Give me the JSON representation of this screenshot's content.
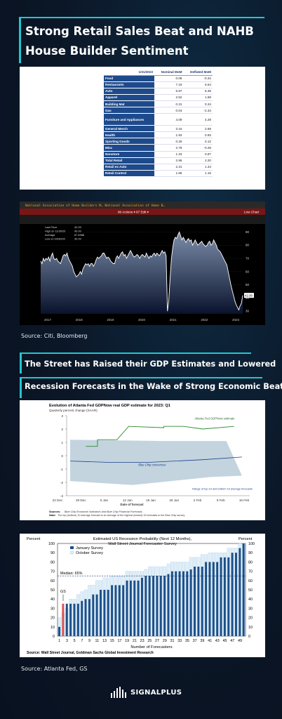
{
  "page": {
    "title": "Strong Retail Sales Beat and NAHB House Builder Sentiment",
    "source1": "Source: Citi, Bloomberg",
    "heading2_line1": "The Street has Raised their GDP Estimates and Lowered",
    "heading2_line2": "Recession Forecasts in the Wake of Strong Economic Beats",
    "source2": "Source: Atlanta Fed, GS",
    "logo": "SIGNALPLUS"
  },
  "colors": {
    "accent": "#23c6d0",
    "table_blue": "#1e4a8c",
    "bg": "#0b1626"
  },
  "chart_data": [
    {
      "type": "table",
      "columns": [
        "1/31/2023",
        "Nominal MoM",
        "Deflated MoM"
      ],
      "rows": [
        [
          "Food",
          "0.08",
          "-0.34"
        ],
        [
          "Restaurants",
          "7.19",
          "6.54"
        ],
        [
          "Auto",
          "5.87",
          "6.36"
        ],
        [
          "Apparel",
          "2.52",
          "1.68"
        ],
        [
          "Building Mat",
          "0.31",
          "0.34"
        ],
        [
          "Gas",
          "0.04",
          "-2.34"
        ],
        [
          "Furniture and Appliances",
          "4.09",
          "4.29"
        ],
        [
          "General Merch",
          "3.16",
          "2.69"
        ],
        [
          "Health",
          "1.93",
          "0.93"
        ],
        [
          "Sporting Goods",
          "0.26",
          "0.12"
        ],
        [
          "Misc",
          "2.79",
          "-0.28"
        ],
        [
          "Nonstore",
          "1.33",
          "0.87"
        ],
        [
          "Total Retail",
          "2.96",
          "2.20"
        ],
        [
          "Retail ex Auto",
          "2.31",
          "1.34"
        ],
        [
          "Retail Control",
          "1.66",
          "1.16"
        ]
      ]
    },
    {
      "type": "area",
      "header1": "National Association of Home Builders M…   National Association of Home B…",
      "header2": "96 Actions ▾   97 Edit ▾",
      "header3": "Line Chart",
      "legend": [
        "Last Price",
        "High on 11/30/20",
        "Average",
        "Low on 04/30/20"
      ],
      "legend_values": [
        "42.00",
        "90.00",
        "67.6986",
        "30.00"
      ],
      "last_label": "42.00",
      "x_ticks": [
        "2017",
        "2018",
        "2019",
        "2020",
        "2021",
        "2022",
        "2023"
      ],
      "y_ticks": [
        "90",
        "80",
        "70",
        "60",
        "50",
        "40",
        "30"
      ],
      "ylim": [
        28,
        95
      ],
      "values": [
        68,
        66,
        70,
        68,
        70,
        69,
        71,
        68,
        72,
        74,
        70,
        69,
        70,
        68,
        67,
        66,
        69,
        72,
        73,
        72,
        74,
        70,
        68,
        66,
        64,
        60,
        58,
        56,
        57,
        58,
        60,
        58,
        62,
        64,
        66,
        65,
        66,
        64,
        66,
        66,
        64,
        66,
        69,
        71,
        70,
        71,
        72,
        74,
        74,
        72,
        70,
        71,
        70,
        68,
        67,
        66,
        66,
        70,
        72,
        70,
        72,
        74,
        75,
        72,
        73,
        70,
        72,
        74,
        76,
        74,
        72,
        71,
        72,
        73,
        72,
        70,
        72,
        73,
        72,
        71,
        74,
        72,
        70,
        72,
        71,
        73,
        74,
        72,
        74,
        73,
        72,
        74,
        76,
        74,
        75,
        72,
        30,
        38,
        55,
        70,
        78,
        84,
        86,
        85,
        88,
        90,
        87,
        84,
        86,
        84,
        82,
        84,
        85,
        83,
        84,
        80,
        82,
        84,
        82,
        80,
        81,
        82,
        83,
        81,
        80,
        79,
        80,
        82,
        83,
        80,
        81,
        84,
        82,
        80,
        77,
        76,
        75,
        73,
        71,
        69,
        67,
        65,
        60,
        55,
        50,
        46,
        42,
        38,
        35,
        33,
        31,
        34,
        36,
        42
      ]
    },
    {
      "type": "line",
      "title": "Evolution of Atlanta Fed GDPNow real GDP estimate for 2023: Q1",
      "subtitle": "Quarterly percent change (SAAR)",
      "xlabel": "Date of forecast",
      "x_ticks": [
        "22 Dec",
        "29 Dec",
        "5 Jan",
        "12 Jan",
        "19 Jan",
        "26 Jan",
        "2 Feb",
        "9 Feb",
        "16 Feb"
      ],
      "y_ticks": [
        "3",
        "2",
        "1",
        "0",
        "-1",
        "-2",
        "-3"
      ],
      "ylim": [
        -3,
        3
      ],
      "annotations": [
        "Atlanta Fed GDPNow estimate",
        "Blue Chip consensus",
        "Range of top 10 and bottom 10 average forecasts"
      ],
      "sources_label": "Sources:",
      "sources_text": "Blue Chip Economic Indicators and Blue Chip Financial Forecasts",
      "note_label": "Note:",
      "note_text": "The top (bottom) 10 average forecast is an average of the highest (lowest) 10 forecasts in the Blue Chip survey.",
      "gdpnow": [
        [
          0.0,
          0.7
        ],
        [
          0.15,
          0.7
        ],
        [
          0.15,
          1.2
        ],
        [
          0.4,
          1.2
        ],
        [
          0.55,
          2.2
        ],
        [
          1.0,
          2.1
        ],
        [
          1.0,
          2.2
        ],
        [
          1.25,
          2.2
        ],
        [
          1.5,
          2.0
        ],
        [
          1.9,
          2.2
        ]
      ],
      "consensus": [
        [
          -0.2,
          -0.4
        ],
        [
          0.3,
          -0.5
        ],
        [
          0.8,
          -0.5
        ],
        [
          1.5,
          -0.3
        ],
        [
          2.0,
          -0.1
        ]
      ],
      "band_top": [
        [
          -0.2,
          1.2
        ],
        [
          1.0,
          1.1
        ],
        [
          1.8,
          1.1
        ]
      ],
      "band_bottom": [
        [
          -0.2,
          -1.9
        ],
        [
          0.6,
          -2.2
        ],
        [
          1.6,
          -1.6
        ],
        [
          2.0,
          -1.5
        ]
      ]
    },
    {
      "type": "bar",
      "title": "Estimated US Recession Probability (Next 12 Months),",
      "subtitle": "Wall Street Journal Forecaster Survey",
      "ylabel_left": "Percent",
      "ylabel_right": "Percent",
      "xlabel": "Number of Forecasters",
      "median_label": "Median: 65%",
      "median": 65,
      "gs_label": "GS",
      "gs_value": 35,
      "source": "Source: Wall Street Journal, Goldman Sachs Global Investment Research",
      "x_ticks": [
        "1",
        "3",
        "5",
        "7",
        "9",
        "11",
        "13",
        "15",
        "17",
        "19",
        "21",
        "23",
        "25",
        "27",
        "29",
        "31",
        "33",
        "35",
        "37",
        "39",
        "41",
        "43",
        "45",
        "47",
        "49"
      ],
      "y_ticks": [
        "100",
        "90",
        "80",
        "70",
        "60",
        "50",
        "40",
        "30",
        "20",
        "10",
        "0"
      ],
      "ylim": [
        0,
        100
      ],
      "series": [
        {
          "name": "January Survey",
          "values": [
            10,
            35,
            35,
            35,
            35,
            35,
            38,
            40,
            40,
            45,
            45,
            50,
            50,
            50,
            55,
            55,
            55,
            55,
            60,
            60,
            60,
            60,
            63,
            65,
            65,
            65,
            65,
            65,
            65,
            67,
            70,
            70,
            70,
            70,
            70,
            72,
            75,
            75,
            75,
            80,
            80,
            80,
            80,
            85,
            85,
            85,
            90,
            90,
            95,
            100
          ]
        },
        {
          "name": "October Survey",
          "values": [
            20,
            25,
            30,
            40,
            40,
            45,
            48,
            50,
            55,
            55,
            60,
            60,
            63,
            63,
            65,
            65,
            65,
            65,
            70,
            70,
            70,
            70,
            70,
            72,
            75,
            75,
            75,
            75,
            75,
            78,
            80,
            80,
            80,
            80,
            80,
            85,
            85,
            85,
            88,
            88,
            90,
            90,
            90,
            90,
            90,
            95,
            95,
            95,
            100,
            100
          ]
        }
      ]
    }
  ]
}
